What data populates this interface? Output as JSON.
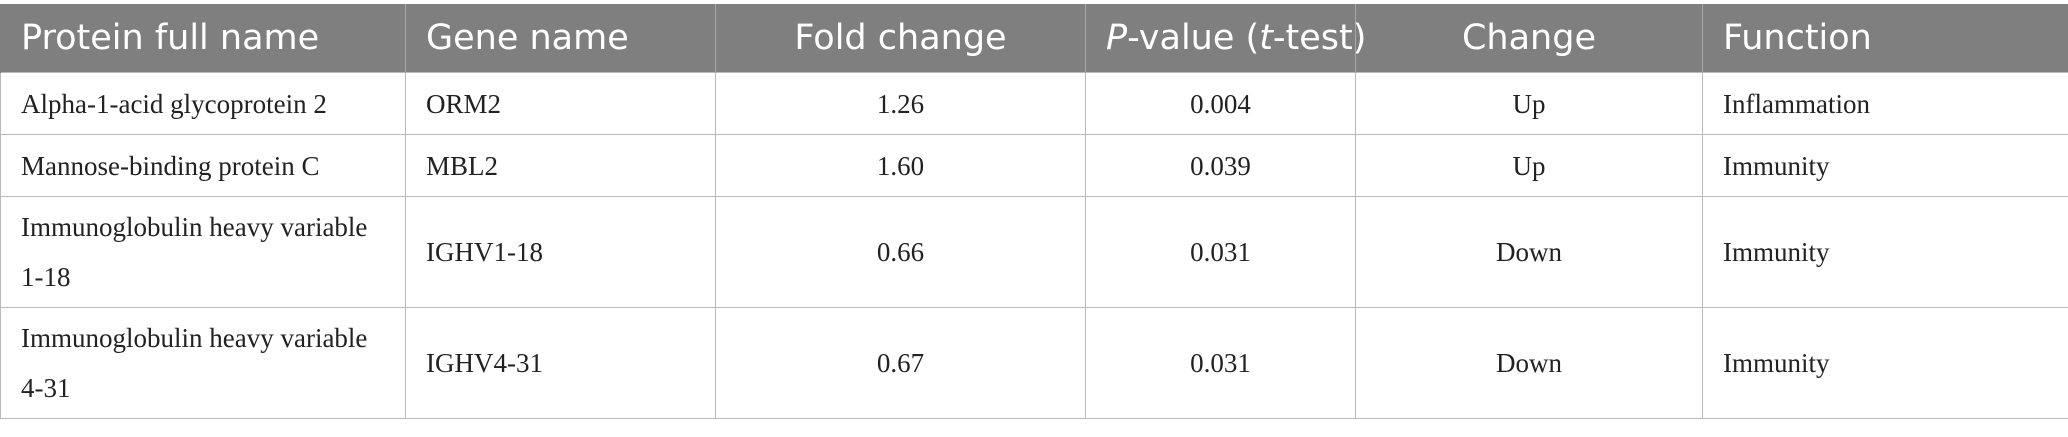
{
  "table": {
    "headers": {
      "protein": "Protein full name",
      "gene": "Gene name",
      "fold": "Fold change",
      "pvalue_p": "P",
      "pvalue_mid": "-value (",
      "pvalue_t": "t",
      "pvalue_end": "-test)",
      "change": "Change",
      "function": "Function"
    },
    "rows": [
      {
        "protein": "Alpha-1-acid glycoprotein 2",
        "gene": "ORM2",
        "fold": "1.26",
        "pvalue": "0.004",
        "change": "Up",
        "function": "Inflammation"
      },
      {
        "protein": "Mannose-binding protein C",
        "gene": "MBL2",
        "fold": "1.60",
        "pvalue": "0.039",
        "change": "Up",
        "function": "Immunity"
      },
      {
        "protein": "Immunoglobulin heavy variable 1-18",
        "gene": "IGHV1-18",
        "fold": "0.66",
        "pvalue": "0.031",
        "change": "Down",
        "function": "Immunity"
      },
      {
        "protein": "Immunoglobulin heavy variable 4-31",
        "gene": "IGHV4-31",
        "fold": "0.67",
        "pvalue": "0.031",
        "change": "Down",
        "function": "Immunity"
      }
    ]
  }
}
